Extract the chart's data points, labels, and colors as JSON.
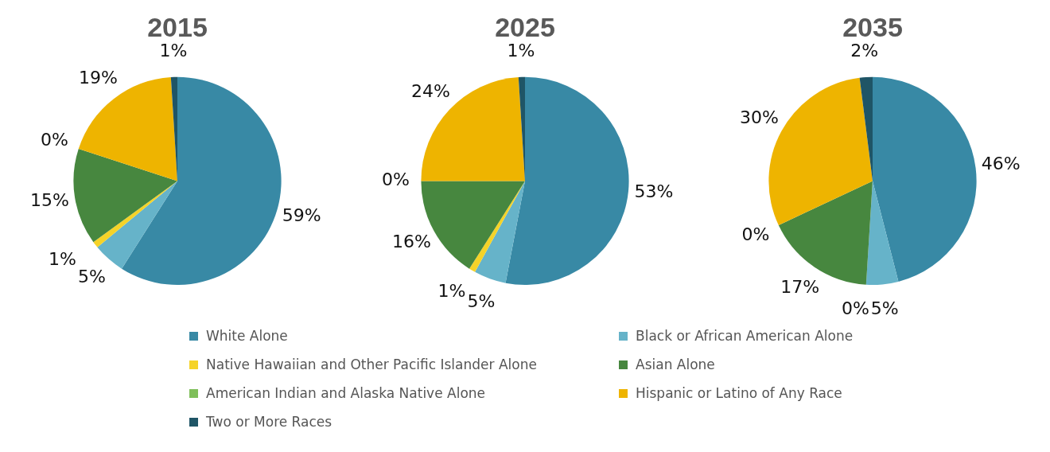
{
  "chart_data": [
    {
      "type": "pie",
      "title": "2015",
      "categories": [
        "White Alone",
        "Black or African American Alone",
        "Native Hawaiian and Other Pacific Islander Alone",
        "Asian Alone",
        "American Indian and Alaska Native Alone",
        "Hispanic or Latino of Any Race",
        "Two or More Races"
      ],
      "values": [
        59,
        5,
        1,
        15,
        0,
        19,
        1
      ],
      "value_labels": [
        "59%",
        "5%",
        "1%",
        "15%",
        "0%",
        "19%",
        "1%"
      ],
      "colors": [
        "#3889a5",
        "#66b3c9",
        "#f5d328",
        "#47873f",
        "#7fbf5a",
        "#eeb400",
        "#1f5566"
      ],
      "legend": "bottom"
    },
    {
      "type": "pie",
      "title": "2025",
      "values": [
        53,
        5,
        1,
        16,
        0,
        24,
        1
      ],
      "value_labels": [
        "53%",
        "5%",
        "1%",
        "16%",
        "0%",
        "24%",
        "1%"
      ],
      "colors": [
        "#3889a5",
        "#66b3c9",
        "#f5d328",
        "#47873f",
        "#7fbf5a",
        "#eeb400",
        "#1f5566"
      ]
    },
    {
      "type": "pie",
      "title": "2035",
      "values": [
        46,
        5,
        0,
        17,
        0,
        30,
        2
      ],
      "value_labels": [
        "46%",
        "5%",
        "0%",
        "17%",
        "0%",
        "30%",
        "2%"
      ],
      "colors": [
        "#3889a5",
        "#66b3c9",
        "#6ec6e8",
        "#47873f",
        "#7fbf5a",
        "#eeb400",
        "#1f5566"
      ]
    }
  ]
}
